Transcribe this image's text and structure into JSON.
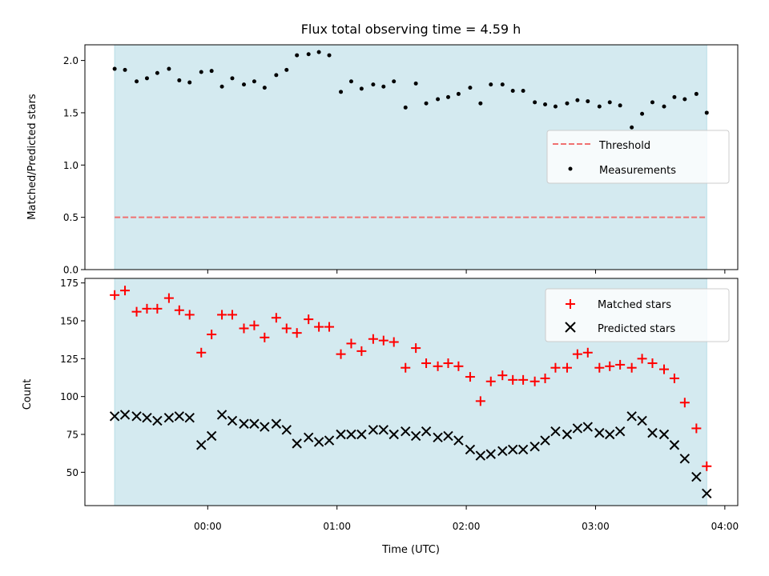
{
  "chart_data": [
    {
      "type": "scatter",
      "title": "Flux total observing time = 4.59 h",
      "ylabel": "Matched/Predicted stars",
      "xlabel": "",
      "ylim": [
        0,
        2.15
      ],
      "yticks": [
        "0.0",
        "0.5",
        "1.0",
        "1.5",
        "2.0"
      ],
      "xlim": [
        -0.95,
        4.1
      ],
      "shaded_span": [
        -0.72,
        3.86
      ],
      "shade_color": "#d4eaf0",
      "legend_position": "center-right",
      "threshold": {
        "name": "Threshold",
        "value": 0.5,
        "x_range": [
          -0.72,
          3.86
        ],
        "color": "#f07070",
        "style": "dashed"
      },
      "series": [
        {
          "name": "Measurements",
          "marker": "dot",
          "color": "#000000",
          "x": [
            -0.72,
            -0.64,
            -0.55,
            -0.47,
            -0.39,
            -0.3,
            -0.22,
            -0.14,
            -0.05,
            0.03,
            0.11,
            0.19,
            0.28,
            0.36,
            0.44,
            0.53,
            0.61,
            0.69,
            0.78,
            0.86,
            0.94,
            1.03,
            1.11,
            1.19,
            1.28,
            1.36,
            1.44,
            1.53,
            1.61,
            1.69,
            1.78,
            1.86,
            1.94,
            2.03,
            2.11,
            2.19,
            2.28,
            2.36,
            2.44,
            2.53,
            2.61,
            2.69,
            2.78,
            2.86,
            2.94,
            3.03,
            3.11,
            3.19,
            3.28,
            3.36,
            3.44,
            3.53,
            3.61,
            3.69,
            3.78,
            3.86
          ],
          "y": [
            1.92,
            1.91,
            1.8,
            1.83,
            1.88,
            1.92,
            1.81,
            1.79,
            1.89,
            1.9,
            1.75,
            1.83,
            1.77,
            1.8,
            1.74,
            1.86,
            1.91,
            2.05,
            2.06,
            2.08,
            2.05,
            1.7,
            1.8,
            1.73,
            1.77,
            1.75,
            1.8,
            1.55,
            1.78,
            1.59,
            1.63,
            1.65,
            1.68,
            1.74,
            1.59,
            1.77,
            1.77,
            1.71,
            1.71,
            1.6,
            1.58,
            1.56,
            1.59,
            1.62,
            1.61,
            1.56,
            1.6,
            1.57,
            1.36,
            1.49,
            1.6,
            1.56,
            1.65,
            1.63,
            1.68,
            1.5
          ]
        }
      ]
    },
    {
      "type": "scatter",
      "title": "",
      "ylabel": "Count",
      "xlabel": "Time (UTC)",
      "ylim": [
        28,
        178
      ],
      "yticks": [
        "50",
        "75",
        "100",
        "125",
        "150",
        "175"
      ],
      "xlim": [
        -0.95,
        4.1
      ],
      "xticks": [
        {
          "value": 0,
          "label": "00:00"
        },
        {
          "value": 1,
          "label": "01:00"
        },
        {
          "value": 2,
          "label": "02:00"
        },
        {
          "value": 3,
          "label": "03:00"
        },
        {
          "value": 4,
          "label": "04:00"
        }
      ],
      "shaded_span": [
        -0.72,
        3.86
      ],
      "shade_color": "#d4eaf0",
      "legend_position": "upper-right",
      "series": [
        {
          "name": "Matched stars",
          "marker": "plus",
          "color": "#ff0000",
          "x": [
            -0.72,
            -0.64,
            -0.55,
            -0.47,
            -0.39,
            -0.3,
            -0.22,
            -0.14,
            -0.05,
            0.03,
            0.11,
            0.19,
            0.28,
            0.36,
            0.44,
            0.53,
            0.61,
            0.69,
            0.78,
            0.86,
            0.94,
            1.03,
            1.11,
            1.19,
            1.28,
            1.36,
            1.44,
            1.53,
            1.61,
            1.69,
            1.78,
            1.86,
            1.94,
            2.03,
            2.11,
            2.19,
            2.28,
            2.36,
            2.44,
            2.53,
            2.61,
            2.69,
            2.78,
            2.86,
            2.94,
            3.03,
            3.11,
            3.19,
            3.28,
            3.36,
            3.44,
            3.53,
            3.61,
            3.69,
            3.78,
            3.86
          ],
          "y": [
            167,
            170,
            156,
            158,
            158,
            165,
            157,
            154,
            129,
            141,
            154,
            154,
            145,
            147,
            139,
            152,
            145,
            142,
            151,
            146,
            146,
            128,
            135,
            130,
            138,
            137,
            136,
            119,
            132,
            122,
            120,
            122,
            120,
            113,
            97,
            110,
            114,
            111,
            111,
            110,
            112,
            119,
            119,
            128,
            129,
            119,
            120,
            121,
            119,
            125,
            122,
            118,
            112,
            96,
            79,
            54
          ]
        },
        {
          "name": "Predicted stars",
          "marker": "x",
          "color": "#000000",
          "x": [
            -0.72,
            -0.64,
            -0.55,
            -0.47,
            -0.39,
            -0.3,
            -0.22,
            -0.14,
            -0.05,
            0.03,
            0.11,
            0.19,
            0.28,
            0.36,
            0.44,
            0.53,
            0.61,
            0.69,
            0.78,
            0.86,
            0.94,
            1.03,
            1.11,
            1.19,
            1.28,
            1.36,
            1.44,
            1.53,
            1.61,
            1.69,
            1.78,
            1.86,
            1.94,
            2.03,
            2.11,
            2.19,
            2.28,
            2.36,
            2.44,
            2.53,
            2.61,
            2.69,
            2.78,
            2.86,
            2.94,
            3.03,
            3.11,
            3.19,
            3.28,
            3.36,
            3.44,
            3.53,
            3.61,
            3.69,
            3.78,
            3.86
          ],
          "y": [
            87,
            88,
            87,
            86,
            84,
            86,
            87,
            86,
            68,
            74,
            88,
            84,
            82,
            82,
            80,
            82,
            78,
            69,
            73,
            70,
            71,
            75,
            75,
            75,
            78,
            78,
            75,
            77,
            74,
            77,
            73,
            74,
            71,
            65,
            61,
            62,
            64,
            65,
            65,
            67,
            71,
            77,
            75,
            79,
            80,
            76,
            75,
            77,
            87,
            84,
            76,
            75,
            68,
            59,
            47,
            36
          ]
        }
      ]
    }
  ]
}
